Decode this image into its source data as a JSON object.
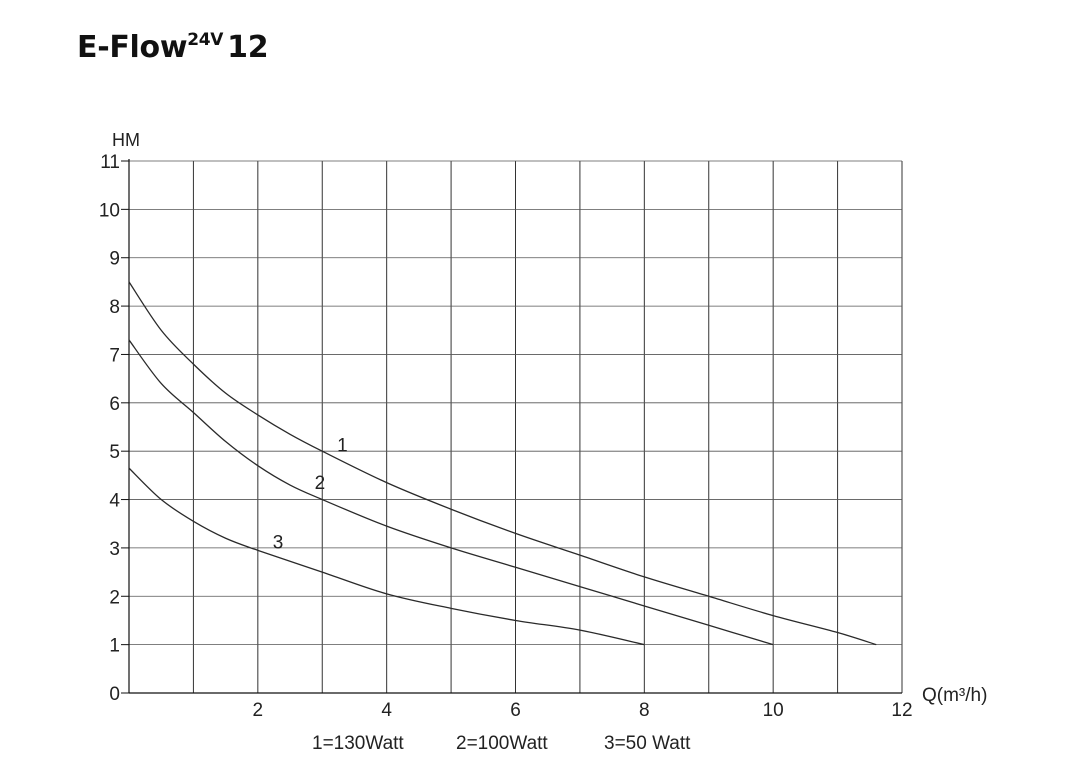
{
  "title": {
    "main": "E-Flow",
    "sup": "24V",
    "suffix": "12"
  },
  "chart_data": {
    "type": "line",
    "title": "E-Flow24V 12",
    "xlabel": "Q(m³/h)",
    "ylabel": "HM",
    "xlim": [
      0,
      12
    ],
    "ylim": [
      0,
      11
    ],
    "x_ticks": [
      "2",
      "4",
      "6",
      "8",
      "10",
      "12"
    ],
    "y_ticks": [
      "0",
      "1",
      "2",
      "3",
      "4",
      "5",
      "6",
      "7",
      "8",
      "9",
      "10",
      "11"
    ],
    "grid": true,
    "series": [
      {
        "name": "1",
        "label": "1",
        "x": [
          0,
          0.5,
          1,
          1.5,
          2,
          2.5,
          3,
          4,
          5,
          6,
          7,
          8,
          9,
          10,
          11,
          11.6
        ],
        "y": [
          8.5,
          7.5,
          6.8,
          6.2,
          5.75,
          5.35,
          5.0,
          4.35,
          3.8,
          3.3,
          2.85,
          2.4,
          2.0,
          1.6,
          1.25,
          1.0
        ]
      },
      {
        "name": "2",
        "label": "2",
        "x": [
          0,
          0.5,
          1,
          1.5,
          2,
          2.5,
          3,
          4,
          5,
          6,
          7,
          8,
          9,
          10
        ],
        "y": [
          7.3,
          6.4,
          5.8,
          5.2,
          4.7,
          4.3,
          4.0,
          3.45,
          3.0,
          2.6,
          2.2,
          1.8,
          1.4,
          1.0
        ]
      },
      {
        "name": "3",
        "label": "3",
        "x": [
          0,
          0.5,
          1,
          1.5,
          2,
          3,
          4,
          5,
          6,
          7,
          8
        ],
        "y": [
          4.65,
          4.0,
          3.55,
          3.2,
          2.95,
          2.5,
          2.05,
          1.75,
          1.5,
          1.3,
          1.0
        ]
      }
    ],
    "legend": [
      "1=130Watt",
      "2=100Watt",
      "3=50 Watt"
    ],
    "legend_position": "bottom"
  }
}
